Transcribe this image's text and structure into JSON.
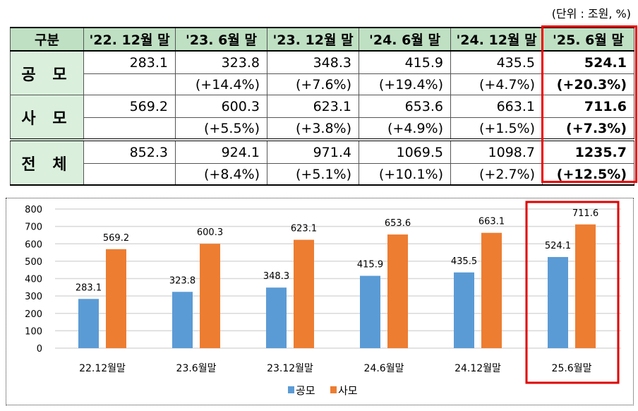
{
  "unit_label": "(단위 : 조원, %)",
  "table": {
    "headers": [
      "구분",
      "'22. 12월 말",
      "'23. 6월 말",
      "'23. 12월 말",
      "'24. 6월 말",
      "'24. 12월 말",
      "'25. 6월 말"
    ],
    "rows": [
      {
        "label": "공 모",
        "values": [
          "283.1",
          "323.8",
          "348.3",
          "415.9",
          "435.5",
          "524.1"
        ],
        "changes": [
          "",
          "(+14.4%)",
          "(+7.6%)",
          "(+19.4%)",
          "(+4.7%)",
          "(+20.3%)"
        ]
      },
      {
        "label": "사 모",
        "values": [
          "569.2",
          "600.3",
          "623.1",
          "653.6",
          "663.1",
          "711.6"
        ],
        "changes": [
          "",
          "(+5.5%)",
          "(+3.8%)",
          "(+4.9%)",
          "(+1.5%)",
          "(+7.3%)"
        ]
      },
      {
        "label": "전 체",
        "values": [
          "852.3",
          "924.1",
          "971.4",
          "1069.5",
          "1098.7",
          "1235.7"
        ],
        "changes": [
          "",
          "(+8.4%)",
          "(+5.1%)",
          "(+10.1%)",
          "(+2.7%)",
          "(+12.5%)"
        ]
      }
    ],
    "highlight_color": "#e00000"
  },
  "chart_data": {
    "type": "bar",
    "categories": [
      "22.12월말",
      "23.6월말",
      "23.12월말",
      "24.6월말",
      "24.12월말",
      "25.6월말"
    ],
    "series": [
      {
        "name": "공모",
        "values": [
          283.1,
          323.8,
          348.3,
          415.9,
          435.5,
          524.1
        ],
        "color": "#5b9bd5"
      },
      {
        "name": "사모",
        "values": [
          569.2,
          600.3,
          623.1,
          653.6,
          663.1,
          711.6
        ],
        "color": "#ed7d31"
      }
    ],
    "ylim": [
      0,
      800
    ],
    "yticks": [
      0,
      100,
      200,
      300,
      400,
      500,
      600,
      700,
      800
    ],
    "grid": true,
    "legend": "bottom",
    "highlight_category": "25.6월말"
  }
}
